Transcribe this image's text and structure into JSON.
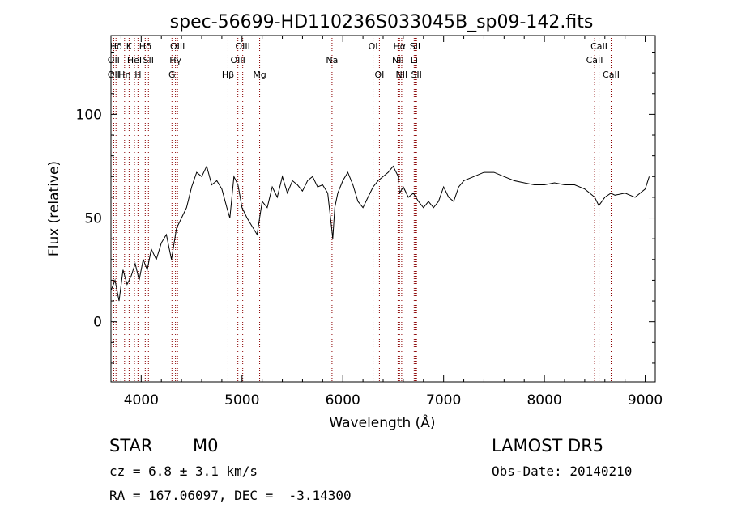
{
  "chart_data": {
    "type": "line",
    "title": "spec-56699-HD110236S033045B_sp09-142.fits",
    "xlabel": "Wavelength (Å)",
    "ylabel": "Flux (relative)",
    "xlim": [
      3700,
      9100
    ],
    "ylim": [
      -29,
      138
    ],
    "xticks": [
      4000,
      5000,
      6000,
      7000,
      8000,
      9000
    ],
    "yticks": [
      0,
      50,
      100
    ],
    "grid": false,
    "line_color": "#000000",
    "marker_color": "#8b0000",
    "series": [
      {
        "x": [
          3700,
          3740,
          3780,
          3820,
          3860,
          3900,
          3940,
          3980,
          4020,
          4060,
          4100,
          4150,
          4200,
          4250,
          4300,
          4350,
          4400,
          4450,
          4500,
          4550,
          4600,
          4650,
          4700,
          4750,
          4800,
          4850,
          4880,
          4920,
          4960,
          5000,
          5050,
          5100,
          5150,
          5200,
          5250,
          5300,
          5350,
          5400,
          5450,
          5500,
          5550,
          5600,
          5650,
          5700,
          5750,
          5800,
          5850,
          5890,
          5900,
          5920,
          5950,
          6000,
          6050,
          6100,
          6150,
          6200,
          6250,
          6300,
          6350,
          6400,
          6450,
          6500,
          6550,
          6563,
          6600,
          6650,
          6700,
          6750,
          6800,
          6850,
          6900,
          6950,
          7000,
          7050,
          7100,
          7150,
          7200,
          7300,
          7400,
          7500,
          7600,
          7700,
          7800,
          7900,
          8000,
          8100,
          8200,
          8300,
          8400,
          8450,
          8500,
          8540,
          8600,
          8660,
          8700,
          8800,
          8900,
          8950,
          9000,
          9040
        ],
        "y": [
          15,
          20,
          10,
          25,
          18,
          22,
          28,
          20,
          30,
          25,
          35,
          30,
          38,
          42,
          30,
          45,
          50,
          55,
          65,
          72,
          70,
          75,
          66,
          68,
          64,
          55,
          50,
          70,
          66,
          55,
          50,
          46,
          42,
          58,
          55,
          65,
          60,
          70,
          62,
          68,
          66,
          63,
          68,
          70,
          65,
          66,
          62,
          45,
          40,
          55,
          62,
          68,
          72,
          66,
          58,
          55,
          60,
          65,
          68,
          70,
          72,
          75,
          70,
          62,
          65,
          60,
          62,
          58,
          55,
          58,
          55,
          58,
          65,
          60,
          58,
          65,
          68,
          70,
          72,
          72,
          70,
          68,
          67,
          66,
          66,
          67,
          66,
          66,
          64,
          62,
          60,
          56,
          60,
          62,
          61,
          62,
          60,
          62,
          64,
          70
        ]
      }
    ],
    "lines": [
      {
        "label": "Hδ",
        "x": 3750,
        "row": 1
      },
      {
        "label": "K",
        "x": 3880,
        "row": 1
      },
      {
        "label": "Hδ",
        "x": 4040,
        "row": 1
      },
      {
        "label": "OIII",
        "x": 4360,
        "row": 1
      },
      {
        "label": "OIII",
        "x": 5007,
        "row": 1
      },
      {
        "label": "OI",
        "x": 6300,
        "row": 1
      },
      {
        "label": "Hα",
        "x": 6563,
        "row": 1
      },
      {
        "label": "SII",
        "x": 6717,
        "row": 1
      },
      {
        "label": "CaII",
        "x": 8542,
        "row": 1
      },
      {
        "label": "OII",
        "x": 3727,
        "row": 2
      },
      {
        "label": "HeI",
        "x": 3933,
        "row": 2
      },
      {
        "label": "SII",
        "x": 4072,
        "row": 2
      },
      {
        "label": "Hγ",
        "x": 4340,
        "row": 2
      },
      {
        "label": "OIII",
        "x": 4959,
        "row": 2
      },
      {
        "label": "Na",
        "x": 5893,
        "row": 2
      },
      {
        "label": "NII",
        "x": 6548,
        "row": 2
      },
      {
        "label": "Li",
        "x": 6708,
        "row": 2
      },
      {
        "label": "CaII",
        "x": 8498,
        "row": 2
      },
      {
        "label": "OII",
        "x": 3727,
        "row": 3
      },
      {
        "label": "Hη",
        "x": 3835,
        "row": 3
      },
      {
        "label": "H",
        "x": 3968,
        "row": 3
      },
      {
        "label": "G",
        "x": 4305,
        "row": 3
      },
      {
        "label": "Hβ",
        "x": 4861,
        "row": 3
      },
      {
        "label": "Mg",
        "x": 5175,
        "row": 3
      },
      {
        "label": "OI",
        "x": 6363,
        "row": 3
      },
      {
        "label": "NII",
        "x": 6584,
        "row": 3
      },
      {
        "label": "SII",
        "x": 6731,
        "row": 3
      },
      {
        "label": "CaII",
        "x": 8662,
        "row": 3
      }
    ]
  },
  "info": {
    "class": "STAR",
    "subclass": "M0",
    "survey": "LAMOST DR5",
    "cz": "cz = 6.8 ± 3.1 km/s",
    "obsdate": "Obs-Date: 20140210",
    "radec": "RA = 167.06097, DEC =  -3.14300"
  }
}
